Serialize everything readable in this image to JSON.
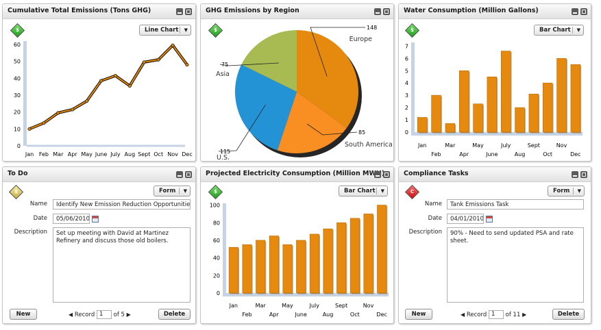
{
  "colors": {
    "bar": "#E58A0F",
    "line": "#DD8506",
    "axis_band": "#C5D3E4",
    "indicator_green": "#2DB32D",
    "indicator_yellow": "#E2D06E",
    "indicator_red": "#E22020"
  },
  "window_controls": {
    "minimize_icon": "minimize-icon",
    "maximize_icon": "maximize-icon"
  },
  "panels": {
    "emissions": {
      "title": "Cumulative Total Emissions (Tons GHG)",
      "indicator": "$",
      "view_select": "Line Chart",
      "chart_data": {
        "type": "line",
        "categories": [
          "Jan",
          "Feb",
          "Mar",
          "Apr",
          "May",
          "June",
          "July",
          "Aug",
          "Sept",
          "Oct",
          "Nov",
          "Dec"
        ],
        "values": [
          10,
          13.5,
          19.5,
          21.5,
          26.5,
          38.5,
          41.5,
          35.5,
          49.5,
          51,
          59.5,
          48
        ],
        "yticks": [
          0,
          10,
          20,
          30,
          40,
          50,
          60
        ],
        "ylim": [
          0,
          62
        ],
        "grid": false
      }
    },
    "region": {
      "title": "GHG Emissions by Region",
      "indicator": "$",
      "chart_data": {
        "type": "pie",
        "labels": [
          "Europe",
          "South America",
          "U.S.",
          "Asia"
        ],
        "values": [
          148,
          85,
          115,
          75
        ],
        "value_labels": [
          "148",
          "85",
          "115",
          "75"
        ],
        "colors": [
          "#E58A0F",
          "#F98E23",
          "#2493D6",
          "#A7BB52"
        ]
      }
    },
    "water": {
      "title": "Water Consumption (Million Gallons)",
      "indicator": "$",
      "view_select": "Bar Chart",
      "chart_data": {
        "type": "bar",
        "categories": [
          "Jan",
          "Feb",
          "Mar",
          "Apr",
          "May",
          "June",
          "July",
          "Aug",
          "Sept",
          "Oct",
          "Nov",
          "Dec"
        ],
        "values": [
          1.2,
          3.0,
          0.7,
          5.0,
          2.3,
          4.5,
          6.6,
          2.0,
          3.1,
          4.0,
          6.0,
          5.5
        ],
        "yticks": [
          0,
          1,
          2,
          3,
          4,
          5,
          6,
          7
        ],
        "ylim": [
          0,
          7.3
        ]
      }
    },
    "todo": {
      "title": "To Do",
      "indicator": "$",
      "view_select": "Form",
      "name_label": "Name",
      "name_value": "Identify New Emission Reduction  Opportunities",
      "date_label": "Date",
      "date_value": "05/06/2010",
      "description_label": "Description",
      "description_value": "Set up meeting with David at Martinez Refinery and discuss those old boilers.",
      "new_label": "New",
      "delete_label": "Delete",
      "record_label": "Record",
      "record_value": "1",
      "record_of": "of 5"
    },
    "electricity": {
      "title": "Projected Electricity Consumption (Million MWH)",
      "indicator": "$",
      "view_select": "Bar Chart",
      "chart_data": {
        "type": "bar",
        "categories": [
          "Jan",
          "Feb",
          "Mar",
          "Apr",
          "May",
          "June",
          "July",
          "Aug",
          "Sept",
          "Oct",
          "Nov",
          "Dec"
        ],
        "values": [
          52,
          55,
          60,
          65,
          55,
          60,
          67,
          73,
          80,
          85,
          90,
          100
        ],
        "yticks": [
          0,
          20,
          40,
          60,
          80,
          100
        ],
        "ylim": [
          0,
          102
        ]
      }
    },
    "compliance": {
      "title": "Compliance Tasks",
      "indicator": "C",
      "view_select": "Form",
      "name_label": "Name",
      "name_value": "Tank Emissions Task",
      "date_label": "Date",
      "date_value": "04/01/2010",
      "description_label": "Description",
      "description_value": "90% - Need to send updated PSA and rate sheet.",
      "new_label": "New",
      "delete_label": "Delete",
      "record_label": "Record",
      "record_value": "1",
      "record_of": "of 11"
    }
  }
}
